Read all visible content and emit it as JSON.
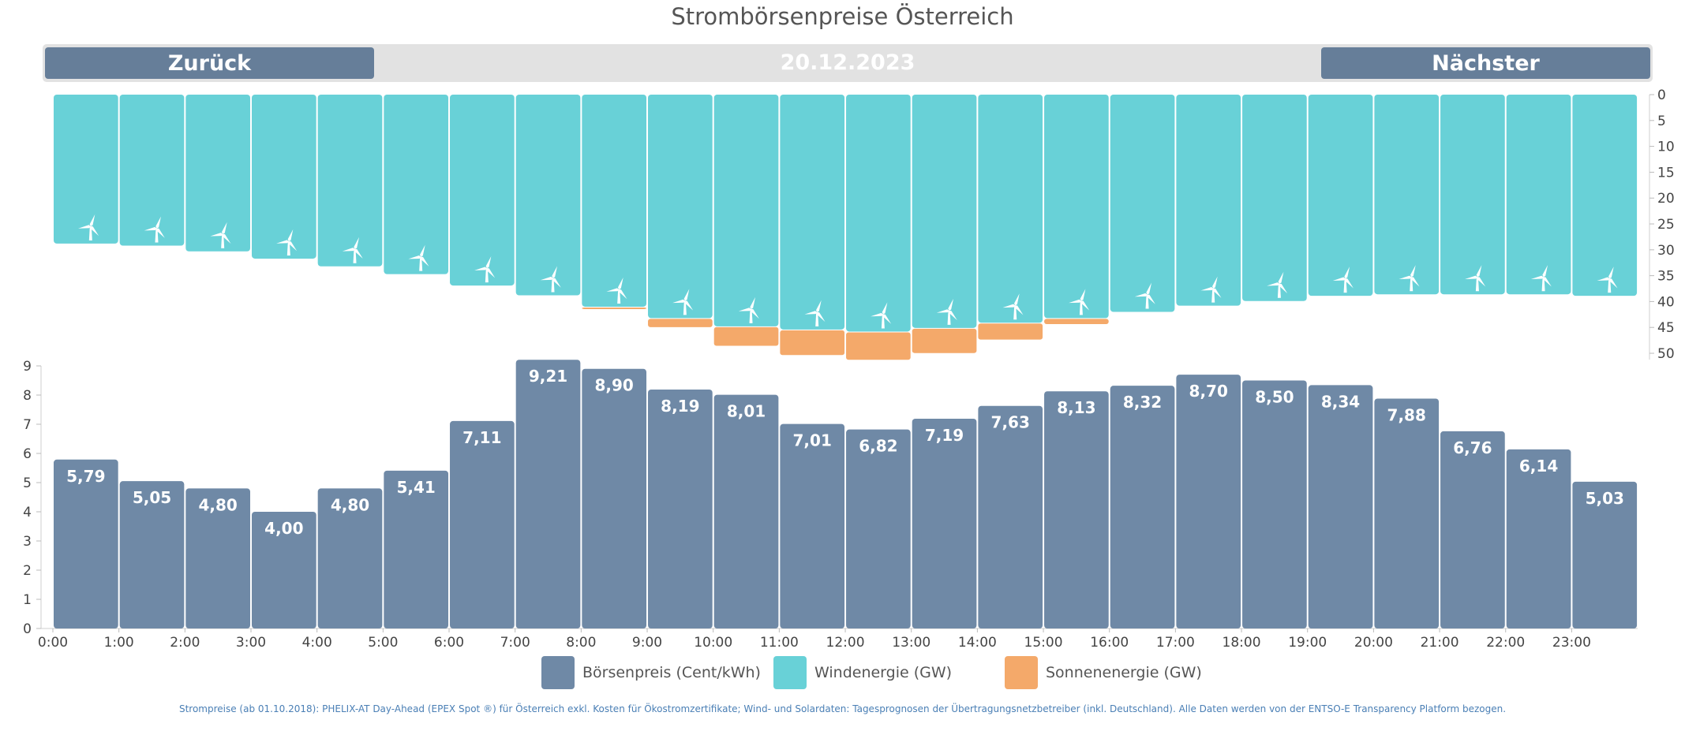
{
  "title": "Strombörsenpreise Österreich",
  "nav": {
    "prev_label": "Zurück",
    "date": "20.12.2023",
    "next_label": "Nächster"
  },
  "legend": [
    {
      "label": "Börsenpreis (Cent/kWh)",
      "color": "#6f89a6"
    },
    {
      "label": "Windenergie (GW)",
      "color": "#68d1d7"
    },
    {
      "label": "Sonnenenergie (GW)",
      "color": "#f4a96a"
    }
  ],
  "footnote": "Strompreise (ab 01.10.2018): PHELIX-AT Day-Ahead (EPEX Spot ®) für Österreich exkl. Kosten für Ökostromzertifikate; Wind- und Solardaten: Tagesprognosen der Übertragungsnetzbetreiber (inkl. Deutschland). Alle Daten werden von der ENTSO-E Transparency Platform bezogen.",
  "colors": {
    "price": "#6f89a6",
    "wind": "#68d1d7",
    "solar": "#f4a96a",
    "nav": "#667e99"
  },
  "icons": {
    "wind": "wind-turbine-icon"
  },
  "chart_data": [
    {
      "type": "bar",
      "title": "",
      "xlabel": "",
      "ylabel": "",
      "ylim": [
        0,
        50
      ],
      "y_inverted": true,
      "stacked": true,
      "yticks": [
        0,
        5,
        10,
        15,
        20,
        25,
        30,
        35,
        40,
        45,
        50
      ],
      "categories": [
        "0:00",
        "1:00",
        "2:00",
        "3:00",
        "4:00",
        "5:00",
        "6:00",
        "7:00",
        "8:00",
        "9:00",
        "10:00",
        "11:00",
        "12:00",
        "13:00",
        "14:00",
        "15:00",
        "16:00",
        "17:00",
        "18:00",
        "19:00",
        "20:00",
        "21:00",
        "22:00",
        "23:00"
      ],
      "series": [
        {
          "name": "Windenergie (GW)",
          "values": [
            28.8,
            29.2,
            30.3,
            31.7,
            33.2,
            34.7,
            36.9,
            38.8,
            41.0,
            43.2,
            44.8,
            45.4,
            45.8,
            45.1,
            44.1,
            43.2,
            42.0,
            40.8,
            39.9,
            38.9,
            38.6,
            38.6,
            38.6,
            38.9
          ]
        },
        {
          "name": "Sonnenenergie (GW)",
          "values": [
            0,
            0,
            0,
            0,
            0,
            0,
            0,
            0,
            0.3,
            1.6,
            3.6,
            4.8,
            5.3,
            4.7,
            3.1,
            1.0,
            0,
            0,
            0,
            0,
            0,
            0,
            0,
            0
          ]
        }
      ]
    },
    {
      "type": "bar",
      "title": "",
      "xlabel": "",
      "ylabel": "",
      "ylim": [
        0,
        9
      ],
      "yticks": [
        0,
        1,
        2,
        3,
        4,
        5,
        6,
        7,
        8,
        9
      ],
      "categories": [
        "0:00",
        "1:00",
        "2:00",
        "3:00",
        "4:00",
        "5:00",
        "6:00",
        "7:00",
        "8:00",
        "9:00",
        "10:00",
        "11:00",
        "12:00",
        "13:00",
        "14:00",
        "15:00",
        "16:00",
        "17:00",
        "18:00",
        "19:00",
        "20:00",
        "21:00",
        "22:00",
        "23:00"
      ],
      "values": [
        5.79,
        5.05,
        4.8,
        4.0,
        4.8,
        5.41,
        7.11,
        9.21,
        8.9,
        8.19,
        8.01,
        7.01,
        6.82,
        7.19,
        7.63,
        8.13,
        8.32,
        8.7,
        8.5,
        8.34,
        7.88,
        6.76,
        6.14,
        5.03
      ],
      "labels": [
        "5,79",
        "5,05",
        "4,80",
        "4,00",
        "4,80",
        "5,41",
        "7,11",
        "9,21",
        "8,90",
        "8,19",
        "8,01",
        "7,01",
        "6,82",
        "7,19",
        "7,63",
        "8,13",
        "8,32",
        "8,70",
        "8,50",
        "8,34",
        "7,88",
        "6,76",
        "6,14",
        "5,03"
      ]
    }
  ]
}
